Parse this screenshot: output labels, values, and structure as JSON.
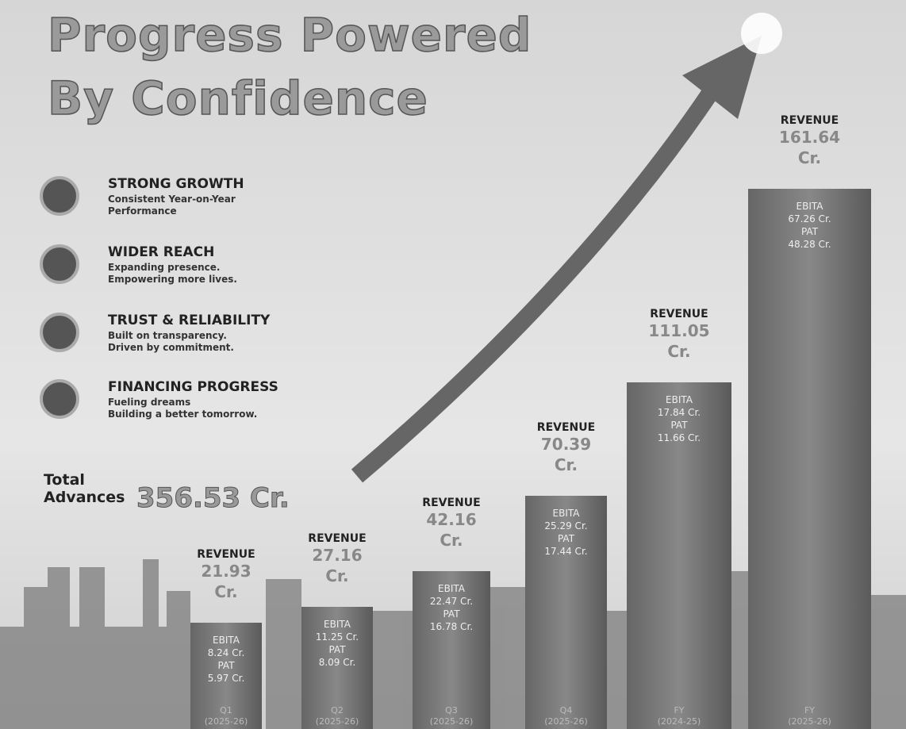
{
  "header": {
    "title_line1": "Progress Powered",
    "title_line2": "By Confidence"
  },
  "features": [
    {
      "title": "STRONG GROWTH",
      "lines": [
        "Consistent Year-on-Year",
        "Performance"
      ]
    },
    {
      "title": "WIDER REACH",
      "lines": [
        "Expanding presence.",
        "Empowering more lives."
      ]
    },
    {
      "title": "TRUST & RELIABILITY",
      "lines": [
        "Built on transparency.",
        "Driven by commitment."
      ]
    },
    {
      "title": "FINANCING PROGRESS",
      "lines": [
        "Fueling dreams",
        "Building a better tomorrow."
      ]
    }
  ],
  "total": {
    "label_line1": "Total",
    "label_line2": "Advances",
    "value": "356.53 Cr."
  },
  "bars": [
    {
      "revenue_label": "REVENUE",
      "revenue": "21.93",
      "unit": "Cr.",
      "ebita_label": "EBITA",
      "ebita": "8.24 Cr.",
      "pat_label": "PAT",
      "pat": "5.97 Cr.",
      "period": "Q1",
      "year": "(2025-26)"
    },
    {
      "revenue_label": "REVENUE",
      "revenue": "27.16",
      "unit": "Cr.",
      "ebita_label": "EBITA",
      "ebita": "11.25 Cr.",
      "pat_label": "PAT",
      "pat": "8.09 Cr.",
      "period": "Q2",
      "year": "(2025-26)"
    },
    {
      "revenue_label": "REVENUE",
      "revenue": "42.16",
      "unit": "Cr.",
      "ebita_label": "EBITA",
      "ebita": "22.47 Cr.",
      "pat_label": "PAT",
      "pat": "16.78 Cr.",
      "period": "Q3",
      "year": "(2025-26)"
    },
    {
      "revenue_label": "REVENUE",
      "revenue": "70.39",
      "unit": "Cr.",
      "ebita_label": "EBITA",
      "ebita": "25.29 Cr.",
      "pat_label": "PAT",
      "pat": "17.44 Cr.",
      "period": "Q4",
      "year": "(2025-26)"
    },
    {
      "revenue_label": "REVENUE",
      "revenue": "111.05",
      "unit": "Cr.",
      "ebita_label": "EBITA",
      "ebita": "17.84 Cr.",
      "pat_label": "PAT",
      "pat": "11.66 Cr.",
      "period": "FY",
      "year": "(2024-25)"
    },
    {
      "revenue_label": "REVENUE",
      "revenue": "161.64",
      "unit": "Cr.",
      "ebita_label": "EBITA",
      "ebita": "67.26 Cr.",
      "pat_label": "PAT",
      "pat": "48.28 Cr.",
      "period": "FY",
      "year": "(2025-26)"
    }
  ]
}
